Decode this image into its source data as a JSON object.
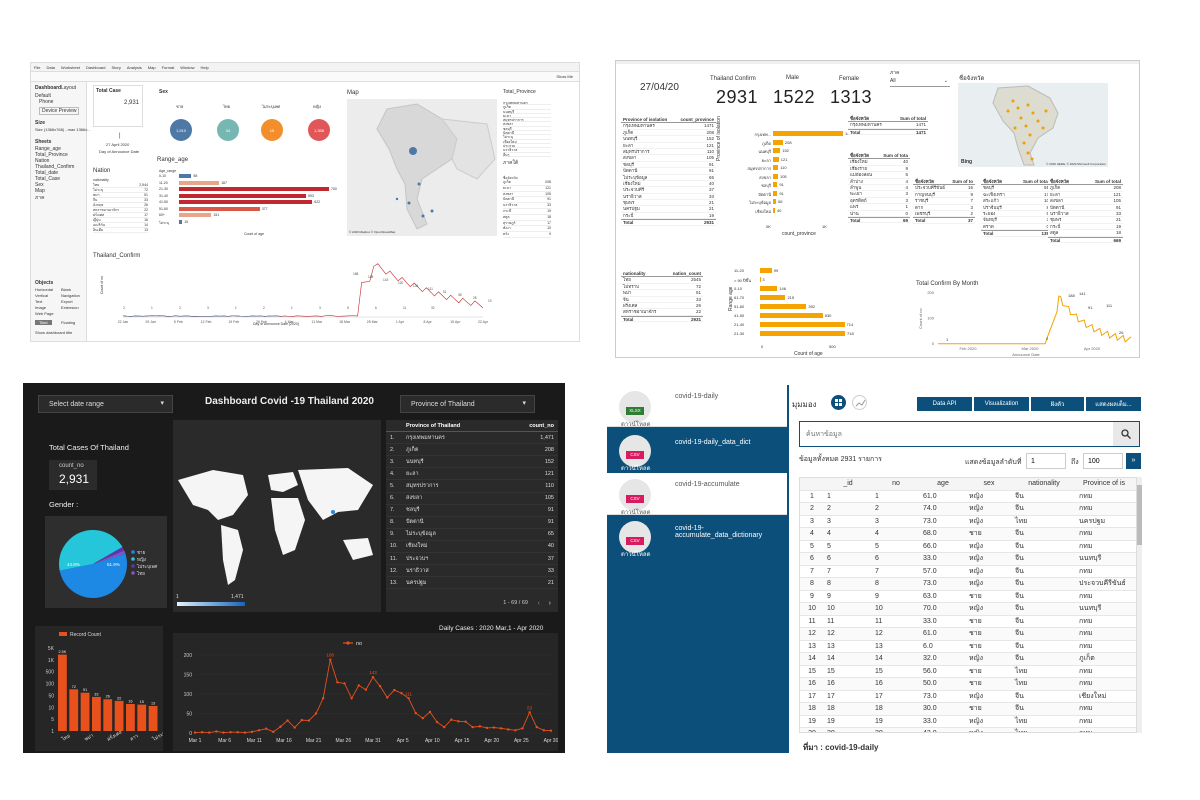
{
  "tableau": {
    "menu": [
      "File",
      "Data",
      "Worksheet",
      "Dashboard",
      "Story",
      "Analysis",
      "Map",
      "Format",
      "Window",
      "Help"
    ],
    "show_me": "Show Me",
    "side_tabs": [
      "Dashboard",
      "Layout"
    ],
    "device": {
      "default": "Default",
      "phone": "Phone",
      "preview": "Device Preview"
    },
    "size_label": "Size",
    "size_value": "Size (1366x768) - max 1366x...",
    "sheets_label": "Sheets",
    "sheets": [
      "Range_age",
      "Total_Province",
      "Nation",
      "Thailand_Confirm",
      "Total_date",
      "Total_Case",
      "Sex",
      "Map",
      "ภาค"
    ],
    "objects_label": "Objects",
    "objects": [
      "Horizontal",
      "Blank",
      "Vertical",
      "Navigation",
      "Text",
      "Export",
      "Image",
      "Extension",
      "Web Page"
    ],
    "tiled": "Tiled",
    "floating": "Floating",
    "show_title": "Show dashboard title",
    "total_case": {
      "title": "Total Case",
      "value": "2,931",
      "date": "27 April 2020",
      "date_label": "Day of Announce Date"
    },
    "sex": {
      "title": "Sex",
      "labels": [
        "ชาย",
        "ไทย",
        "ไม่ระบุเพศ",
        "หญิง"
      ],
      "values": [
        "1,510",
        "34",
        "15",
        "1,358"
      ],
      "colors": [
        "#4e79a7",
        "#76b7b2",
        "#f28e2b",
        "#e15759"
      ]
    },
    "map": {
      "title": "Map",
      "credit": "© 2020 Mapbox © OpenStreetMap"
    },
    "range_age": {
      "title": "Range_age",
      "axis_label": "Count of age",
      "header": "Age_range",
      "rows": [
        {
          "label": "0-10",
          "value": "58"
        },
        {
          "label": "11-20",
          "value": "187"
        },
        {
          "label": "21-30",
          "value": "700"
        },
        {
          "label": "31-40",
          "value": "593"
        },
        {
          "label": "41-50",
          "value": "622"
        },
        {
          "label": "51-60",
          "value": "377"
        },
        {
          "label": "60+",
          "value": "151"
        },
        {
          "label": "ไม่ระบุ",
          "value": "15"
        }
      ]
    },
    "nation": {
      "title": "Nation",
      "header": "nationality",
      "rows": [
        {
          "label": "ไทย",
          "value": "2,544"
        },
        {
          "label": "ไม่ระบุ",
          "value": "72"
        },
        {
          "label": "พม่า",
          "value": "51"
        },
        {
          "label": "จีน",
          "value": "33"
        },
        {
          "label": "อังกฤษ",
          "value": "26"
        },
        {
          "label": "สหราชอาณาจักร",
          "value": "22"
        },
        {
          "label": "ฝรั่งเศส",
          "value": "17"
        },
        {
          "label": "ญี่ปุ่น",
          "value": "16"
        },
        {
          "label": "อเมริกัน",
          "value": "14"
        },
        {
          "label": "อินเดีย",
          "value": "13"
        }
      ]
    },
    "province": {
      "title": "Total_Province",
      "items": [
        "กรุงเทพมหานคร",
        "ภูเก็ต",
        "นนทบุรี",
        "ยะลา",
        "สมุทรปราการ",
        "สงขลา",
        "ชลบุรี",
        "ปัตตานี",
        "ไม่ระบุ",
        "เชียงใหม่",
        "ประจวบ",
        "นราธิวาส",
        "อื่นๆ"
      ]
    },
    "region": {
      "title": "ภาคใต้",
      "header": "ชื่อจังหวัด",
      "rows": [
        {
          "label": "ภูเก็ต",
          "value": "208"
        },
        {
          "label": "ยะลา",
          "value": "121"
        },
        {
          "label": "สงขลา",
          "value": "105"
        },
        {
          "label": "ปัตตานี",
          "value": "91"
        },
        {
          "label": "นราธิวาส",
          "value": "33"
        },
        {
          "label": "กระบี่",
          "value": "19"
        },
        {
          "label": "สตูล",
          "value": "18"
        },
        {
          "label": "สุราษฎร์",
          "value": "17"
        },
        {
          "label": "พังงา",
          "value": "10"
        },
        {
          "label": "ตรัง",
          "value": "9"
        }
      ]
    },
    "thai_confirm": {
      "title": "Thailand_Confirm",
      "xlabel": "Day of Announce Date [2020]",
      "ylabel": "Count of no",
      "ticks": [
        "22 Jan",
        "29 Jan",
        "5 Feb",
        "12 Feb",
        "19 Feb",
        "26 Feb",
        "4 Mar",
        "11 Mar",
        "18 Mar",
        "25 Mar",
        "1 Apr",
        "8 Apr",
        "15 Apr",
        "22 Apr"
      ],
      "labels": [
        "2",
        "1",
        "2",
        "3",
        "1",
        "2",
        "1",
        "3",
        "5",
        "6",
        "11",
        "32",
        "188",
        "188",
        "143",
        "120",
        "136",
        "111",
        "51",
        "38",
        "28",
        "19"
      ]
    }
  },
  "powerbi": {
    "date": "27/04/20",
    "kpis": [
      {
        "label": "Thailand Confirm",
        "value": "2931"
      },
      {
        "label": "Male",
        "value": "1522"
      },
      {
        "label": "Female",
        "value": "1313"
      }
    ],
    "filter": {
      "label": "ภาค",
      "value": "All"
    },
    "map_title": "ชื่อจังหวัด",
    "map_credit": "© 2020 HERE, © 2020 Microsoft Corporation",
    "bing": "Bing",
    "isolation": {
      "h1": "Province of isolation",
      "h2": "count_province",
      "rows": [
        [
          "กรุงเทพมหานคร",
          "1471"
        ],
        [
          "ภูเก็ต",
          "208"
        ],
        [
          "นนทบุรี",
          "152"
        ],
        [
          "ยะลา",
          "121"
        ],
        [
          "สมุทรปราการ",
          "110"
        ],
        [
          "สงขลา",
          "105"
        ],
        [
          "ชลบุรี",
          "91"
        ],
        [
          "ปัตตานี",
          "91"
        ],
        [
          "ไม่ระบุข้อมูล",
          "65"
        ],
        [
          "เชียงใหม่",
          "40"
        ],
        [
          "ประจวบคีรี",
          "37"
        ],
        [
          "นราธิวาส",
          "33"
        ],
        [
          "ชุมพร",
          "21"
        ],
        [
          "นครปฐม",
          "21"
        ],
        [
          "กระบี่",
          "19"
        ]
      ],
      "total": [
        "Total",
        "2931"
      ]
    },
    "iso_chart": {
      "ylabel": "Province of isolation",
      "xlabel": "count_province",
      "ticks": [
        "0K",
        "1K"
      ],
      "bars": [
        {
          "label": "กรุงเทพ...",
          "value": 1471
        },
        {
          "label": "ภูเก็ต",
          "value": 208
        },
        {
          "label": "นนทบุรี",
          "value": 152
        },
        {
          "label": "ยะลา",
          "value": 121
        },
        {
          "label": "สมุทรปราการ",
          "value": 110
        },
        {
          "label": "สงขลา",
          "value": 105
        },
        {
          "label": "ชลบุรี",
          "value": 91
        },
        {
          "label": "ปัตตานี",
          "value": 91
        },
        {
          "label": "ไม่ระบุข้อมูล",
          "value": 65
        },
        {
          "label": "เชียงใหม่",
          "value": 40
        }
      ],
      "values": [
        "1471",
        "208",
        "152",
        "121",
        "110",
        "105",
        "91",
        "91",
        "65",
        "40"
      ]
    },
    "nation": {
      "h1": "nationality",
      "h2": "nation_count",
      "rows": [
        [
          "ไทย",
          "2545"
        ],
        [
          "ไม่ทราบ",
          "72"
        ],
        [
          "พม่า",
          "51"
        ],
        [
          "จีน",
          "33"
        ],
        [
          "ฝรั่งเศส",
          "26"
        ],
        [
          "สหราชอาณาจักร",
          "22"
        ]
      ],
      "total": [
        "Total",
        "2931"
      ]
    },
    "age": {
      "ylabel": "Range age",
      "xlabel": "Count of age",
      "ticks": [
        "0",
        "500"
      ],
      "bars": [
        {
          "label": "11-20",
          "value": 99
        },
        {
          "label": "> 90 ปีขึ้น",
          "value": 3
        },
        {
          "label": "0-10",
          "value": 146
        },
        {
          "label": "61-70",
          "value": 215
        },
        {
          "label": "51-60",
          "value": 392
        },
        {
          "label": "41-50",
          "value": 530
        },
        {
          "label": "21-40",
          "value": 714
        },
        {
          "label": "21-30",
          "value": 718
        }
      ]
    },
    "small_tables": [
      {
        "h1": "ชื่อจังหวัด",
        "h2": "Sum of total",
        "rows": [
          [
            "กรุงเทพมหานคร",
            "1471"
          ]
        ],
        "total": [
          "Total",
          "1471"
        ]
      },
      {
        "h1": "ชื่อจังหวัด",
        "h2": "Sum of tota",
        "rows": [
          [
            "เชียงใหม่",
            "40"
          ],
          [
            "เชียงราย",
            "9"
          ],
          [
            "แม่ฮ่องสอน",
            "5"
          ],
          [
            "ลำปาง",
            "4"
          ],
          [
            "ลำพูน",
            "4"
          ],
          [
            "พะเยา",
            "3"
          ],
          [
            "อุตรดิตถ์",
            "3"
          ],
          [
            "แพร่",
            "1"
          ],
          [
            "น่าน",
            "0"
          ]
        ],
        "total": [
          "Total",
          "69"
        ]
      },
      {
        "h1": "ชื่อจังหวัด",
        "h2": "Sum of to",
        "rows": [
          [
            "ประจวบคีรีขันธ์",
            "16"
          ],
          [
            "กาญจนบุรี",
            "9"
          ],
          [
            "ราชบุรี",
            "7"
          ],
          [
            "ตาก",
            "3"
          ],
          [
            "เพชรบุรี",
            "2"
          ]
        ],
        "total": [
          "Total",
          "37"
        ]
      },
      {
        "h1": "ชื่อจังหวัด",
        "h2": "Sum of total",
        "rows": [
          [
            "ชลบุรี",
            "91"
          ],
          [
            "ฉะเชิงเทรา",
            "17"
          ],
          [
            "สระแก้ว",
            "10"
          ],
          [
            "ปราจีนบุรี",
            "8"
          ],
          [
            "ระยอง",
            "6"
          ],
          [
            "จันทบุรี",
            "3"
          ],
          [
            "ตราด",
            "0"
          ]
        ],
        "total": [
          "Total",
          "135"
        ]
      },
      {
        "h1": "ชื่อจังหวัด",
        "h2": "Sum of total",
        "rows": [
          [
            "ภูเก็ต",
            "208"
          ],
          [
            "ยะลา",
            "121"
          ],
          [
            "สงขลา",
            "105"
          ],
          [
            "ปัตตานี",
            "91"
          ],
          [
            "นราธิวาส",
            "33"
          ],
          [
            "ชุมพร",
            "21"
          ],
          [
            "กระบี่",
            "19"
          ],
          [
            "สตูล",
            "18"
          ]
        ],
        "total": [
          "Total",
          "669"
        ]
      }
    ],
    "month_chart": {
      "title": "Total Confirm By Month",
      "ylabel": "Count of no",
      "xlabel": "Announce Date",
      "yticks": [
        "200",
        "100",
        "0"
      ],
      "xticks": [
        "Feb 2020",
        "Mar 2020",
        "Apr 2020"
      ],
      "labels": [
        "1",
        "2",
        "188",
        "141",
        "91",
        "111",
        "26"
      ]
    }
  },
  "dark": {
    "title": "Dashboard Covid -19 Thailand 2020",
    "date_select": "Select date range",
    "province_select": "Province of Thailand",
    "total_title": "Total Cases Of Thailand",
    "count_label": "count_no",
    "count_value": "2,931",
    "gender_title": "Gender :",
    "gender": {
      "slices": [
        {
          "name": "ชาย",
          "value": 51.9,
          "color": "#1e88e5"
        },
        {
          "name": "หญิง",
          "value": 44.8,
          "color": "#26c6da"
        },
        {
          "name": "ไม่ระบุเพศ",
          "value": 1.8,
          "color": "#5e35b1"
        },
        {
          "name": "ไทย",
          "value": 1.5,
          "color": "#7e57c2"
        }
      ],
      "pct_a": "51.9%",
      "pct_b": "44.8%"
    },
    "map_legend_min": "1",
    "map_legend_max": "1,471",
    "province": {
      "h1": "Province of Thailand",
      "h2": "count_no",
      "rows": [
        [
          "1.",
          "กรุงเทพมหานคร",
          "1,471"
        ],
        [
          "2.",
          "ภูเก็ต",
          "208"
        ],
        [
          "3.",
          "นนทบุรี",
          "152"
        ],
        [
          "4.",
          "ยะลา",
          "121"
        ],
        [
          "5.",
          "สมุทรปราการ",
          "110"
        ],
        [
          "6.",
          "สงขลา",
          "105"
        ],
        [
          "7.",
          "ชลบุรี",
          "91"
        ],
        [
          "8.",
          "ปัตตานี",
          "91"
        ],
        [
          "9.",
          "ไม่ระบุข้อมูล",
          "65"
        ],
        [
          "10.",
          "เชียงใหม่",
          "40"
        ],
        [
          "11.",
          "ประจวบฯ",
          "37"
        ],
        [
          "12.",
          "นราธิวาส",
          "33"
        ],
        [
          "13.",
          "นครปฐม",
          "21"
        ]
      ],
      "pagination": "1 - 69 / 69"
    },
    "record": {
      "legend": "Record Count",
      "yticks": [
        "5K",
        "1K",
        "500",
        "100",
        "50",
        "10",
        "5",
        "1"
      ],
      "color": "#e8501c",
      "bars": [
        {
          "label": "ไทย",
          "value": 2545
        },
        {
          "label": "",
          "value": 72
        },
        {
          "label": "พม่า",
          "value": 51
        },
        {
          "label": "",
          "value": 33
        },
        {
          "label": "อังกฤษ",
          "value": 26
        },
        {
          "label": "",
          "value": 22
        },
        {
          "label": "ลาว",
          "value": 16
        },
        {
          "label": "",
          "value": 15
        },
        {
          "label": "ฝรั่งเศส",
          "value": 13
        }
      ],
      "values": [
        "2.5K",
        "72",
        "51",
        "33",
        "26",
        "22",
        "16",
        "15",
        "13"
      ],
      "xlabels": [
        "ไทย",
        "พม่า",
        "ฝรั่งเศส",
        "ลาว",
        "ไม่ระบุ"
      ]
    },
    "daily": {
      "title": "Daily Cases : 2020 Mar,1 - Apr 2020",
      "legend": "no",
      "yticks": [
        "200",
        "150",
        "100",
        "50",
        "0"
      ],
      "xticks": [
        "Mar 1",
        "Mar 6",
        "Mar 11",
        "Mar 16",
        "Mar 21",
        "Mar 26",
        "Mar 31",
        "Apr 5",
        "Apr 10",
        "Apr 15",
        "Apr 20",
        "Apr 25",
        "Apr 30"
      ],
      "values": [
        1,
        2,
        1,
        4,
        1,
        2,
        2,
        1,
        3,
        7,
        11,
        3,
        16,
        32,
        14,
        33,
        32,
        50,
        89,
        188,
        130,
        127,
        89,
        122,
        111,
        143,
        120,
        91,
        110,
        102,
        89,
        51,
        38,
        54,
        28,
        15,
        34,
        30,
        29,
        15,
        17,
        13,
        14,
        12,
        9,
        7,
        12,
        53,
        15,
        7,
        6
      ],
      "labels": [
        "188",
        "143",
        "111",
        "53"
      ]
    }
  },
  "portal": {
    "datasets": [
      {
        "name": "covid-19-daily",
        "type": "XLSX",
        "dl": "ดาวน์โหลด",
        "active": false
      },
      {
        "name": "covid-19-daily_data_dict",
        "type": "CSV",
        "dl": "ดาวน์โหลด",
        "active": true
      },
      {
        "name": "covid-19-accumulate",
        "type": "CSV",
        "dl": "ดาวน์โหลด",
        "active": false
      },
      {
        "name": "covid-19-accumulate_data_dictionary",
        "type": "CSV",
        "dl": "ดาวน์โหลด",
        "active": true
      }
    ],
    "view_label": "มุมมอง",
    "buttons": [
      "Data API",
      "Visualization",
      "ฝังตัว",
      "แสดงผลเต็ม..."
    ],
    "search_placeholder": "ค้นหาข้อมูล",
    "total_text": "ข้อมูลทั้งหมด 2931 รายการ",
    "range_label": "แสดงข้อมูลลำดับที่",
    "range_from": "1",
    "range_to_label": "ถึง",
    "range_to": "100",
    "headers": [
      "_id",
      "no",
      "age",
      "sex",
      "nationality",
      "Province of is"
    ],
    "rows": [
      [
        "1",
        "1",
        "61.0",
        "หญิง",
        "จีน",
        "กทม"
      ],
      [
        "2",
        "2",
        "74.0",
        "หญิง",
        "จีน",
        "กทม"
      ],
      [
        "3",
        "3",
        "73.0",
        "หญิง",
        "ไทย",
        "นครปฐม"
      ],
      [
        "4",
        "4",
        "68.0",
        "ชาย",
        "จีน",
        "กทม"
      ],
      [
        "5",
        "5",
        "66.0",
        "หญิง",
        "จีน",
        "กทม"
      ],
      [
        "6",
        "6",
        "33.0",
        "หญิง",
        "จีน",
        "นนทบุรี"
      ],
      [
        "7",
        "7",
        "57.0",
        "หญิง",
        "จีน",
        "กทม"
      ],
      [
        "8",
        "8",
        "73.0",
        "หญิง",
        "จีน",
        "ประจวบคีรีขันธ์"
      ],
      [
        "9",
        "9",
        "63.0",
        "ชาย",
        "จีน",
        "กทม"
      ],
      [
        "10",
        "10",
        "70.0",
        "หญิง",
        "จีน",
        "นนทบุรี"
      ],
      [
        "11",
        "11",
        "33.0",
        "ชาย",
        "จีน",
        "กทม"
      ],
      [
        "12",
        "12",
        "61.0",
        "ชาย",
        "จีน",
        "กทม"
      ],
      [
        "13",
        "13",
        "6.0",
        "ชาย",
        "จีน",
        "กทม"
      ],
      [
        "14",
        "14",
        "32.0",
        "หญิง",
        "จีน",
        "ภูเก็ต"
      ],
      [
        "15",
        "15",
        "56.0",
        "ชาย",
        "ไทย",
        "กทม"
      ],
      [
        "16",
        "16",
        "50.0",
        "ชาย",
        "ไทย",
        "กทม"
      ],
      [
        "17",
        "17",
        "73.0",
        "หญิง",
        "จีน",
        "เชียงใหม่"
      ],
      [
        "18",
        "18",
        "30.0",
        "ชาย",
        "จีน",
        "กทม"
      ],
      [
        "19",
        "19",
        "33.0",
        "หญิง",
        "ไทย",
        "กทม"
      ],
      [
        "20",
        "20",
        "43.0",
        "หญิง",
        "ไทย",
        "กทม"
      ]
    ],
    "source": "ที่มา : covid-19-daily"
  }
}
